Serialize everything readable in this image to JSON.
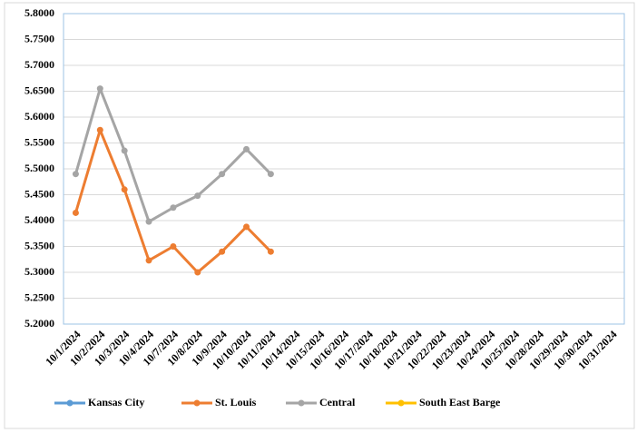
{
  "chart_data": {
    "type": "line",
    "categories": [
      "10/1/2024",
      "10/2/2024",
      "10/3/2024",
      "10/4/2024",
      "10/7/2024",
      "10/8/2024",
      "10/9/2024",
      "10/10/2024",
      "10/11/2024",
      "10/14/2024",
      "10/15/2024",
      "10/16/2024",
      "10/17/2024",
      "10/18/2024",
      "10/21/2024",
      "10/22/2024",
      "10/23/2024",
      "10/24/2024",
      "10/25/2024",
      "10/28/2024",
      "10/29/2024",
      "10/30/2024",
      "10/31/2024"
    ],
    "series": [
      {
        "name": "Kansas City",
        "color": "#5b9bd5",
        "values": [
          null,
          null,
          null,
          null,
          null,
          null,
          null,
          null,
          null,
          null,
          null,
          null,
          null,
          null,
          null,
          null,
          null,
          null,
          null,
          null,
          null,
          null,
          null
        ]
      },
      {
        "name": "St. Louis",
        "color": "#ed7d31",
        "values": [
          5.415,
          5.575,
          5.46,
          5.323,
          5.35,
          5.3,
          5.34,
          5.388,
          5.34,
          null,
          null,
          null,
          null,
          null,
          null,
          null,
          null,
          null,
          null,
          null,
          null,
          null,
          null
        ]
      },
      {
        "name": "Central",
        "color": "#a5a5a5",
        "values": [
          5.49,
          5.655,
          5.535,
          5.398,
          5.425,
          5.448,
          5.49,
          5.538,
          5.49,
          null,
          null,
          null,
          null,
          null,
          null,
          null,
          null,
          null,
          null,
          null,
          null,
          null,
          null
        ]
      },
      {
        "name": "South East Barge",
        "color": "#ffc000",
        "values": [
          null,
          null,
          null,
          null,
          null,
          null,
          null,
          null,
          null,
          null,
          null,
          null,
          null,
          null,
          null,
          null,
          null,
          null,
          null,
          null,
          null,
          null,
          null
        ]
      }
    ],
    "ylim": [
      5.2,
      5.8
    ],
    "yticks": [
      {
        "value": 5.2,
        "label": "5.2000"
      },
      {
        "value": 5.25,
        "label": "5.2500"
      },
      {
        "value": 5.3,
        "label": "5.3000"
      },
      {
        "value": 5.35,
        "label": "5.3500"
      },
      {
        "value": 5.4,
        "label": "5.4000"
      },
      {
        "value": 5.45,
        "label": "5.4500"
      },
      {
        "value": 5.5,
        "label": "5.5000"
      },
      {
        "value": 5.55,
        "label": "5.5500"
      },
      {
        "value": 5.6,
        "label": "5.6000"
      },
      {
        "value": 5.65,
        "label": "5.6500"
      },
      {
        "value": 5.7,
        "label": "5.7000"
      },
      {
        "value": 5.75,
        "label": "5.7500"
      },
      {
        "value": 5.8,
        "label": "5.8000"
      }
    ],
    "grid": true,
    "legend": "bottom"
  }
}
